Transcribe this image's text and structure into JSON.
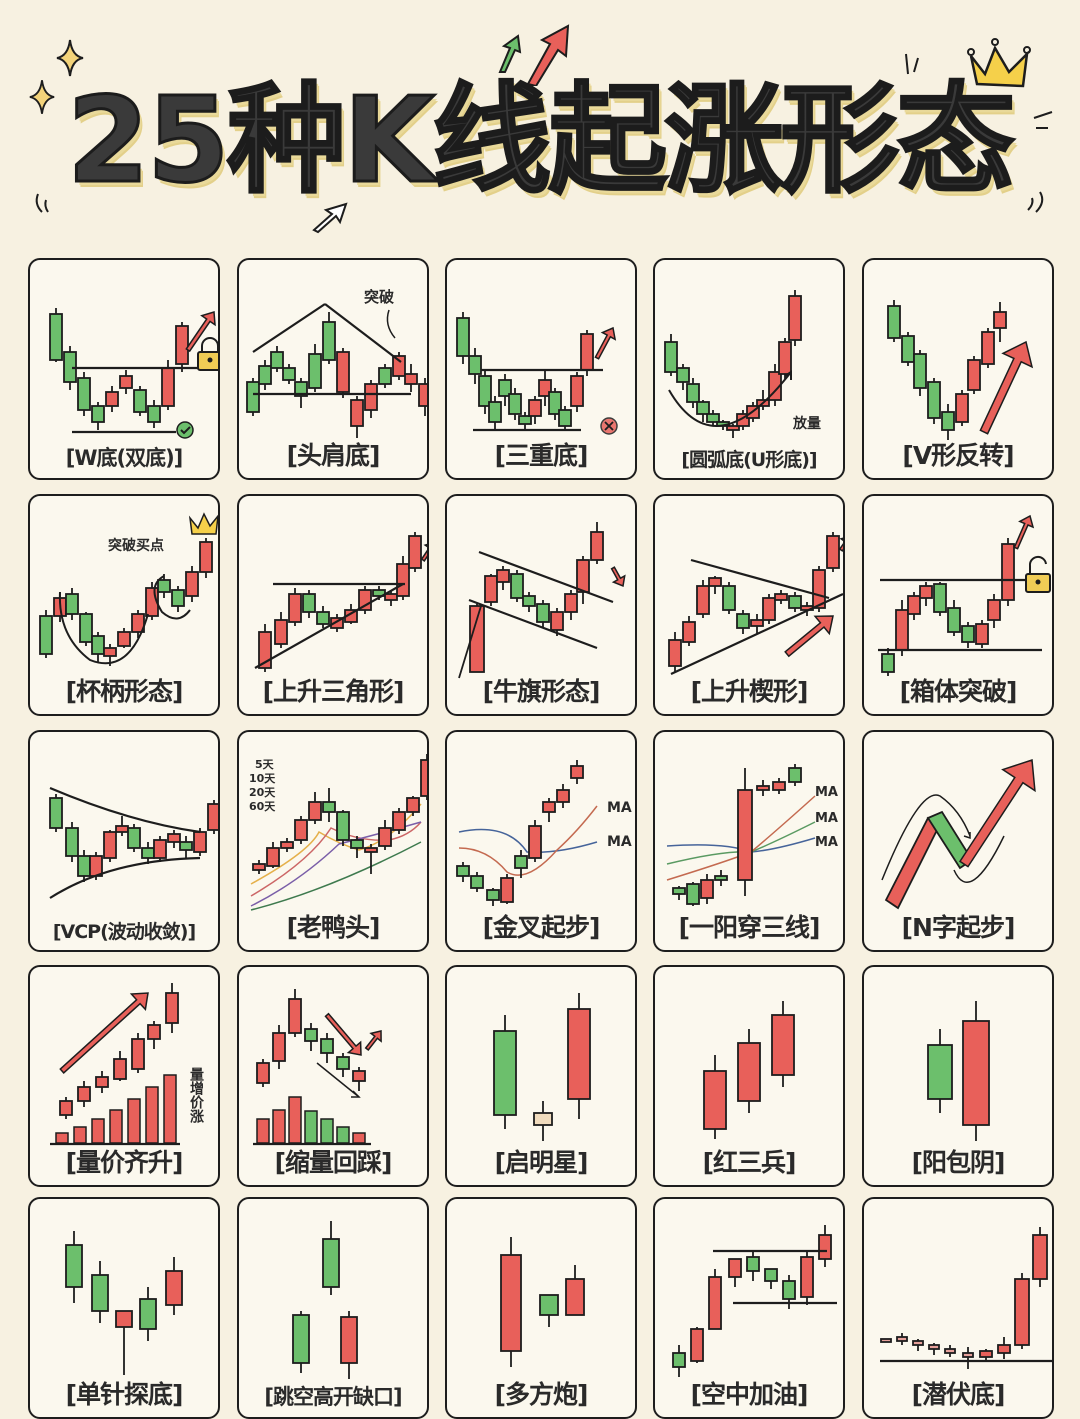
{
  "header": {
    "title": "25种K线起涨形态",
    "decorations": [
      "sparkle-icon",
      "sparkle-icon",
      "green-arrow-icon",
      "red-arrow-icon",
      "outline-arrow-icon",
      "crown-icon"
    ]
  },
  "colors": {
    "background": "#f7f1e1",
    "card": "#fbf8ee",
    "red_candle": "#e8605a",
    "green_candle": "#6cbf6c",
    "line": "#1d1d1d",
    "title_text": "#3a3a3a",
    "crown": "#f5d04a",
    "lock": "#f0cc55"
  },
  "patterns": [
    {
      "label": "[W底(双底)]",
      "name": "w-bottom",
      "badge": "check-icon"
    },
    {
      "label": "[头肩底]",
      "name": "head-shoulders-bottom",
      "annotation": "突破"
    },
    {
      "label": "[三重底]",
      "name": "triple-bottom",
      "badge": "x-circle-icon"
    },
    {
      "label": "[圆弧底(U形底)]",
      "name": "rounding-bottom",
      "annotation": "放量"
    },
    {
      "label": "[V形反转]",
      "name": "v-reversal"
    },
    {
      "label": "[杯柄形态]",
      "name": "cup-handle",
      "annotation": "突破买点",
      "badge": "crown-icon"
    },
    {
      "label": "[上升三角形]",
      "name": "ascending-triangle"
    },
    {
      "label": "[牛旗形态]",
      "name": "bull-flag"
    },
    {
      "label": "[上升楔形]",
      "name": "rising-wedge"
    },
    {
      "label": "[箱体突破]",
      "name": "box-breakout",
      "badge": "unlock-icon"
    },
    {
      "label": "[VCP(波动收敛)]",
      "name": "vcp"
    },
    {
      "label": "[老鸭头]",
      "name": "old-duck-head",
      "ma_labels": [
        "5天",
        "10天",
        "20天",
        "60天"
      ]
    },
    {
      "label": "[金叉起步]",
      "name": "golden-cross",
      "ma_labels": [
        "MA",
        "MA"
      ]
    },
    {
      "label": "[一阳穿三线]",
      "name": "one-yang-three-lines",
      "ma_labels": [
        "MA",
        "MA",
        "MA"
      ]
    },
    {
      "label": "[N字起步]",
      "name": "n-shape"
    },
    {
      "label": "[量价齐升]",
      "name": "volume-price-rise",
      "annotation": "量增价涨"
    },
    {
      "label": "[缩量回踩]",
      "name": "low-volume-pullback"
    },
    {
      "label": "[启明星]",
      "name": "morning-star"
    },
    {
      "label": "[红三兵]",
      "name": "three-white-soldiers"
    },
    {
      "label": "[阳包阴]",
      "name": "bullish-engulfing"
    },
    {
      "label": "[单针探底]",
      "name": "single-needle-bottom"
    },
    {
      "label": "[跳空高开缺口]",
      "name": "gap-up"
    },
    {
      "label": "[多方炮]",
      "name": "bull-cannon"
    },
    {
      "label": "[空中加油]",
      "name": "midair-refuel"
    },
    {
      "label": "[潜伏底]",
      "name": "latent-bottom"
    }
  ]
}
